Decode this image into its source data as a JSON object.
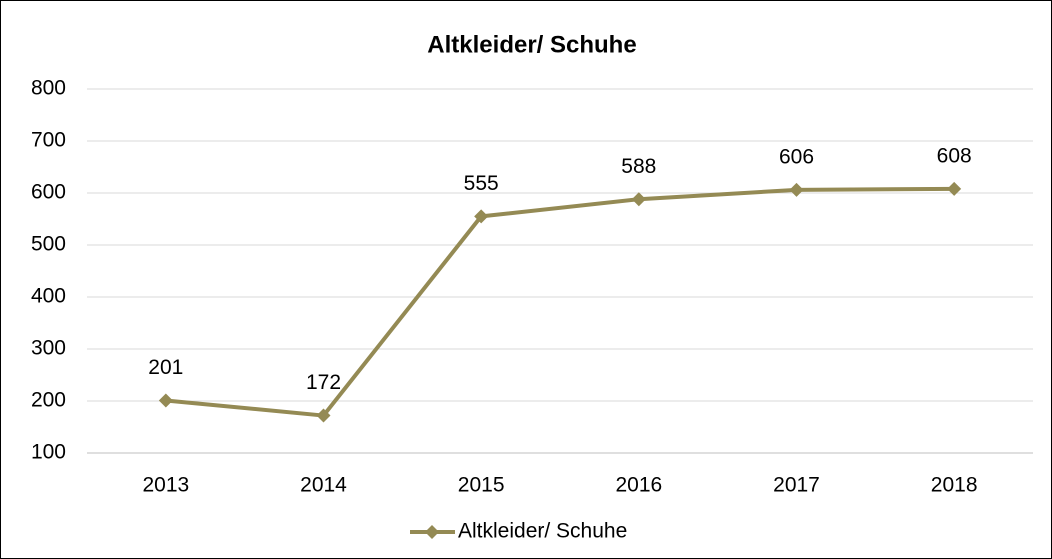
{
  "chart_data": {
    "type": "line",
    "title": "Altkleider/ Schuhe",
    "categories": [
      "2013",
      "2014",
      "2015",
      "2016",
      "2017",
      "2018"
    ],
    "series": [
      {
        "name": "Altkleider/ Schuhe",
        "color": "#948a54",
        "values": [
          201,
          172,
          555,
          588,
          606,
          608
        ]
      }
    ],
    "ylim": [
      100,
      800
    ],
    "yticks": [
      100,
      200,
      300,
      400,
      500,
      600,
      700,
      800
    ],
    "grid": true,
    "legend": "bottom"
  }
}
